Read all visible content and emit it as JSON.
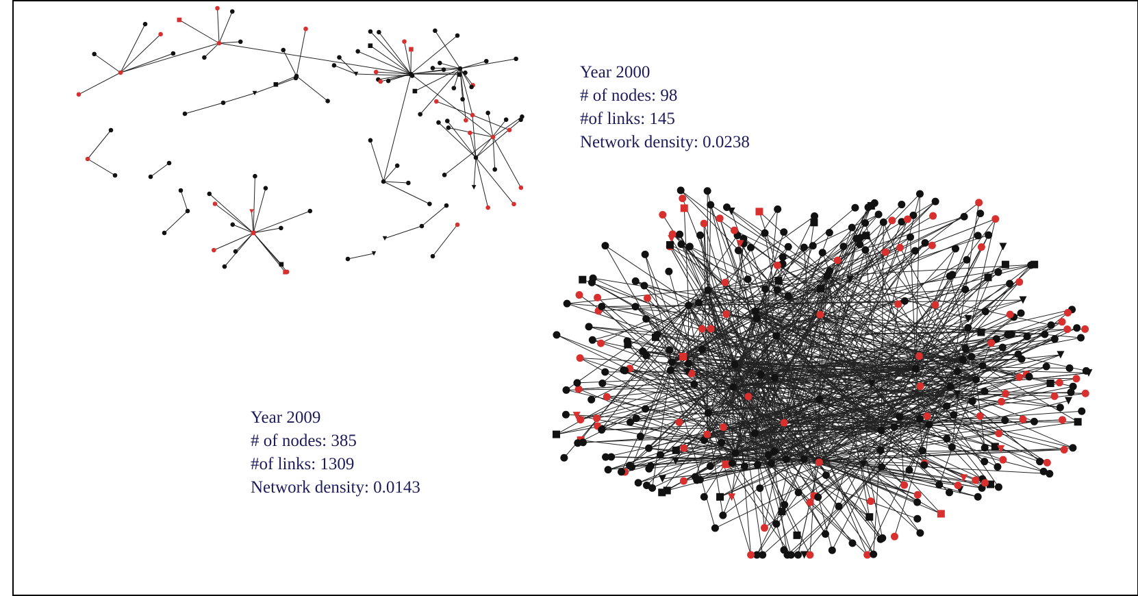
{
  "networks": [
    {
      "year": "Year 2000",
      "stats": [
        "# of nodes: 98",
        "#of links: 145",
        "Network density: 0.0238"
      ]
    },
    {
      "year": "Year 2009",
      "stats": [
        "# of nodes: 385",
        "#of links: 1309",
        "Network density: 0.0143"
      ]
    }
  ]
}
